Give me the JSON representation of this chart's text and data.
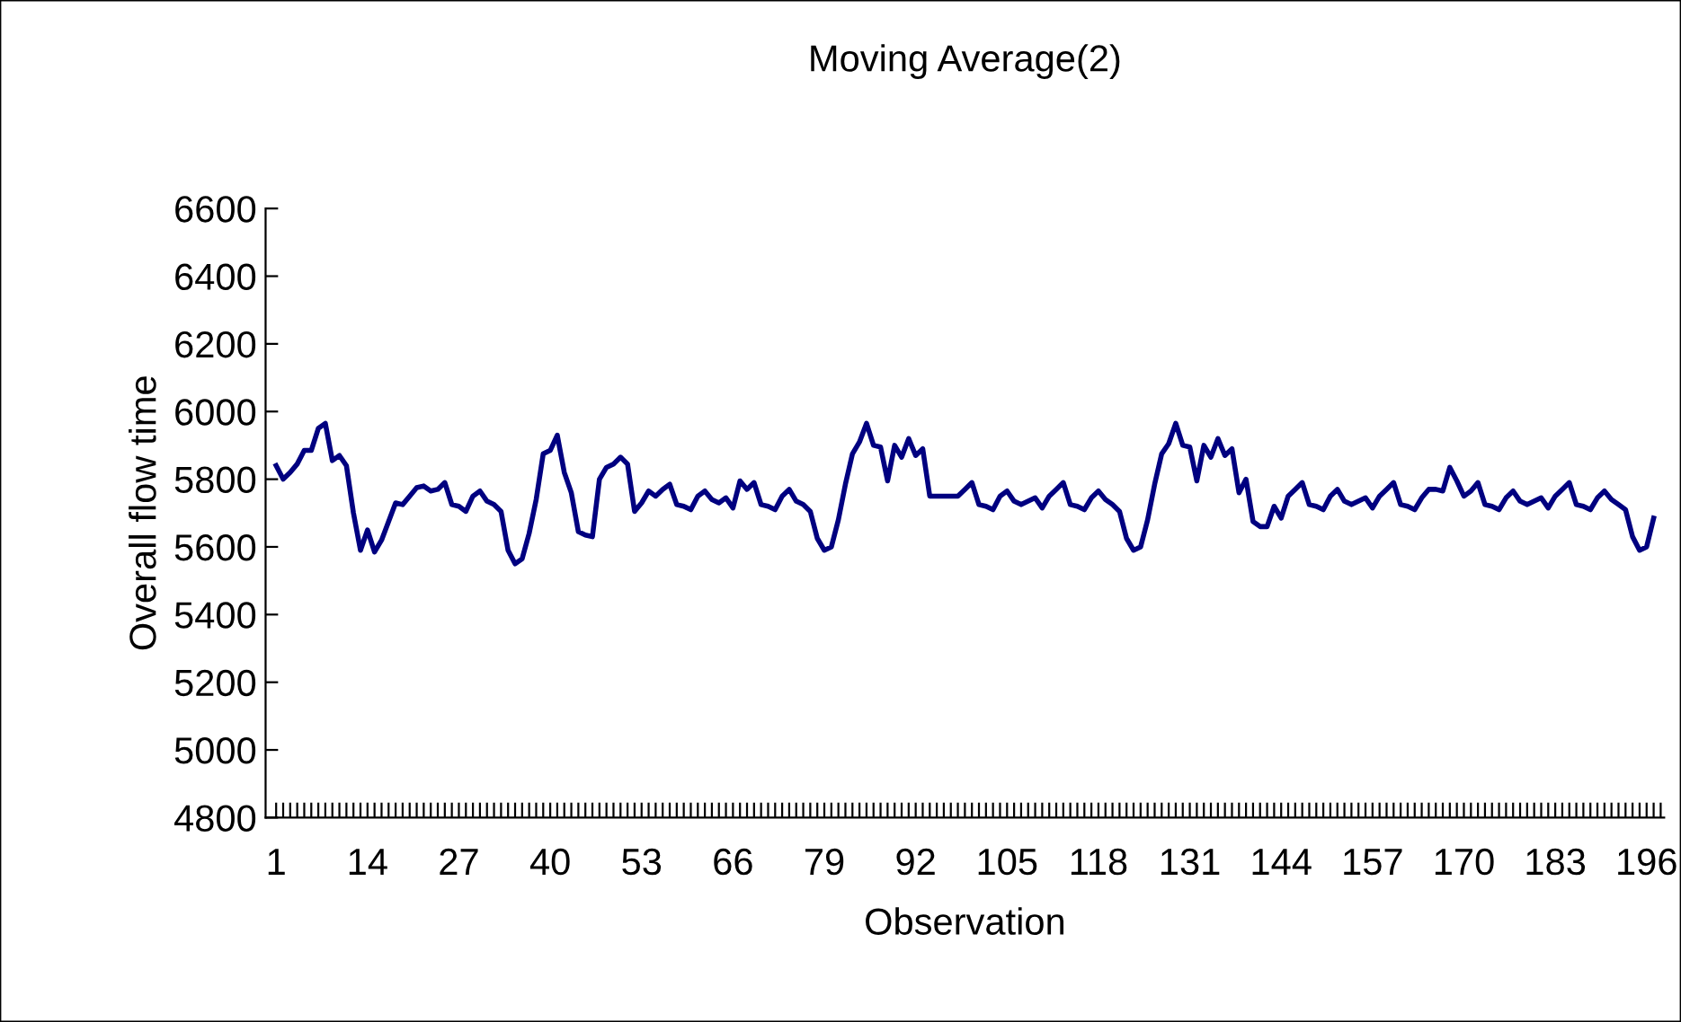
{
  "chart_data": {
    "type": "line",
    "title": "Moving Average(2)",
    "xlabel": "Observation",
    "ylabel": "Overall flow time",
    "categories": [
      "1",
      null,
      null,
      null,
      null,
      null,
      null,
      null,
      null,
      null,
      null,
      null,
      null,
      "14",
      null,
      null,
      null,
      null,
      null,
      null,
      null,
      null,
      null,
      null,
      null,
      null,
      "27",
      null,
      null,
      null,
      null,
      null,
      null,
      null,
      null,
      null,
      null,
      null,
      null,
      "40",
      null,
      null,
      null,
      null,
      null,
      null,
      null,
      null,
      null,
      null,
      null,
      null,
      "53",
      null,
      null,
      null,
      null,
      null,
      null,
      null,
      null,
      null,
      null,
      null,
      null,
      "66",
      null,
      null,
      null,
      null,
      null,
      null,
      null,
      null,
      null,
      null,
      null,
      null,
      "79",
      null,
      null,
      null,
      null,
      null,
      null,
      null,
      null,
      null,
      null,
      null,
      null,
      "92",
      null,
      null,
      null,
      null,
      null,
      null,
      null,
      null,
      null,
      null,
      null,
      null,
      "105",
      null,
      null,
      null,
      null,
      null,
      null,
      null,
      null,
      null,
      null,
      null,
      null,
      "118",
      null,
      null,
      null,
      null,
      null,
      null,
      null,
      null,
      null,
      null,
      null,
      null,
      "131",
      null,
      null,
      null,
      null,
      null,
      null,
      null,
      null,
      null,
      null,
      null,
      null,
      "144",
      null,
      null,
      null,
      null,
      null,
      null,
      null,
      null,
      null,
      null,
      null,
      null,
      "157",
      null,
      null,
      null,
      null,
      null,
      null,
      null,
      null,
      null,
      null,
      null,
      null,
      "170",
      null,
      null,
      null,
      null,
      null,
      null,
      null,
      null,
      null,
      null,
      null,
      null,
      "183",
      null,
      null,
      null,
      null,
      null,
      null,
      null,
      null,
      null,
      null,
      null,
      null,
      "196",
      null,
      null
    ],
    "series": [
      {
        "color": "#000080",
        "values": [
          5840,
          5800,
          5820,
          5845,
          5885,
          5885,
          5950,
          5965,
          5855,
          5870,
          5840,
          5700,
          5590,
          5650,
          5585,
          5620,
          5675,
          5730,
          5725,
          5750,
          5775,
          5780,
          5765,
          5770,
          5790,
          5725,
          5720,
          5705,
          5750,
          5765,
          5735,
          5725,
          5705,
          5590,
          5550,
          5565,
          5640,
          5740,
          5875,
          5885,
          5930,
          5820,
          5760,
          5645,
          5635,
          5630,
          5800,
          5835,
          5845,
          5865,
          5845,
          5705,
          5730,
          5765,
          5750,
          5770,
          5785,
          5725,
          5720,
          5710,
          5750,
          5765,
          5740,
          5730,
          5745,
          5715,
          5795,
          5770,
          5790,
          5725,
          5720,
          5710,
          5750,
          5770,
          5735,
          5725,
          5705,
          5625,
          5590,
          5600,
          5680,
          5785,
          5875,
          5910,
          5965,
          5900,
          5895,
          5795,
          5900,
          5865,
          5920,
          5870,
          5890,
          5750,
          5750,
          5750,
          5750,
          5750,
          5770,
          5790,
          5725,
          5720,
          5710,
          5750,
          5765,
          5735,
          5725,
          5735,
          5745,
          5715,
          5750,
          5770,
          5790,
          5725,
          5720,
          5710,
          5745,
          5765,
          5740,
          5725,
          5705,
          5625,
          5590,
          5600,
          5680,
          5785,
          5875,
          5905,
          5965,
          5900,
          5895,
          5795,
          5900,
          5865,
          5920,
          5870,
          5890,
          5760,
          5800,
          5675,
          5660,
          5660,
          5720,
          5685,
          5750,
          5770,
          5790,
          5725,
          5720,
          5710,
          5750,
          5770,
          5735,
          5725,
          5735,
          5745,
          5715,
          5750,
          5770,
          5790,
          5725,
          5720,
          5710,
          5745,
          5770,
          5770,
          5765,
          5835,
          5795,
          5750,
          5765,
          5790,
          5725,
          5720,
          5710,
          5745,
          5765,
          5735,
          5725,
          5735,
          5745,
          5715,
          5750,
          5770,
          5790,
          5725,
          5720,
          5710,
          5745,
          5765,
          5740,
          5725,
          5710,
          5630,
          5590,
          5600,
          5685,
          null
        ]
      }
    ],
    "ylim": [
      4800,
      6600
    ],
    "yticks": [
      4800,
      5000,
      5200,
      5400,
      5600,
      5800,
      6000,
      6200,
      6400,
      6600
    ],
    "grid": false,
    "legend": false,
    "marker": "none",
    "line_style": "solid"
  }
}
